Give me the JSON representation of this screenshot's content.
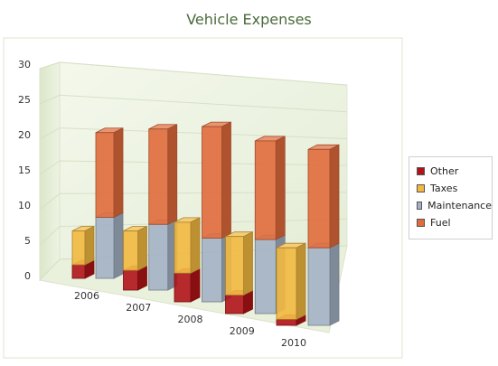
{
  "chart_data": {
    "type": "bar",
    "title": "Vehicle Expenses",
    "xlabel": "",
    "ylabel": "",
    "ylim": [
      0,
      30
    ],
    "yticks": [
      0,
      5,
      10,
      15,
      20,
      25,
      30
    ],
    "categories": [
      "2006",
      "2007",
      "2008",
      "2009",
      "2010"
    ],
    "grid": true,
    "legend_position": "right",
    "stacks": [
      {
        "stack": "Other + Taxes",
        "series": [
          "Other",
          "Taxes"
        ]
      },
      {
        "stack": "Maintenance + Fuel",
        "series": [
          "Maintenance",
          "Fuel"
        ]
      }
    ],
    "series": [
      {
        "name": "Other",
        "color": "#b01318",
        "values": [
          2,
          3,
          4.5,
          3,
          1
        ]
      },
      {
        "name": "Taxes",
        "color": "#f2b840",
        "values": [
          5,
          6,
          8,
          9.5,
          12
        ]
      },
      {
        "name": "Maintenance",
        "color": "#a3b1c4",
        "values": [
          9,
          10,
          10,
          12,
          13
        ]
      },
      {
        "name": "Fuel",
        "color": "#e06b3c",
        "values": [
          12.5,
          14.5,
          17.5,
          16,
          16.5
        ]
      }
    ]
  }
}
